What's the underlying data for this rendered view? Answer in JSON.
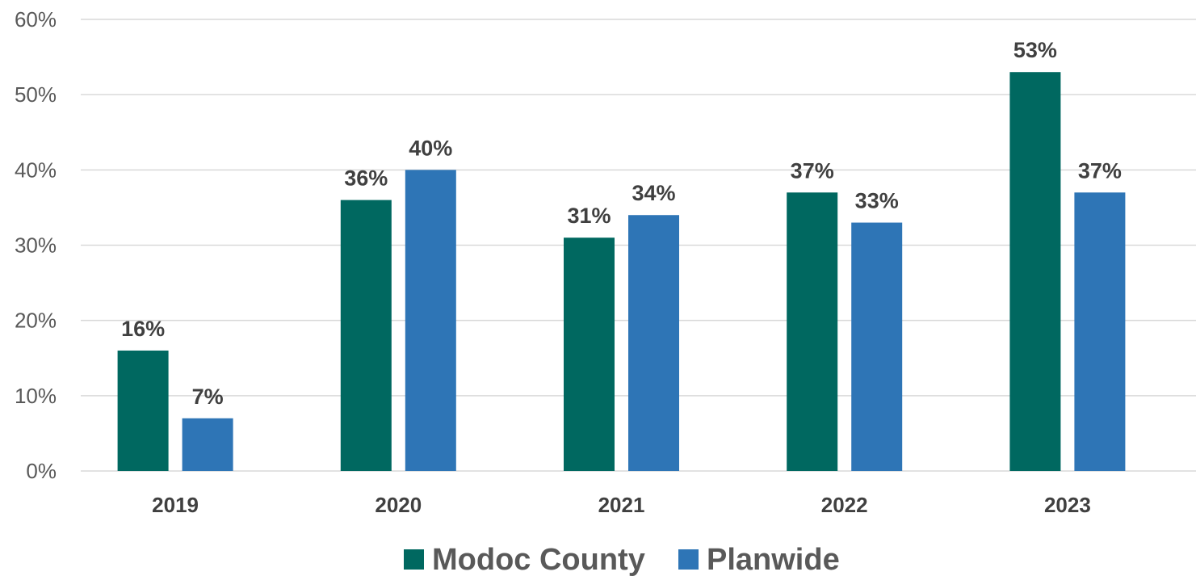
{
  "chart_data": {
    "type": "bar",
    "categories": [
      "2019",
      "2020",
      "2021",
      "2022",
      "2023"
    ],
    "series": [
      {
        "name": "Modoc County",
        "values": [
          16,
          36,
          31,
          37,
          53
        ],
        "color": "#006860"
      },
      {
        "name": "Planwide",
        "values": [
          7,
          40,
          34,
          33,
          37
        ],
        "color": "#2E75B6"
      }
    ],
    "value_suffix": "%",
    "ylim": [
      0,
      60
    ],
    "yticks": [
      0,
      10,
      20,
      30,
      40,
      50,
      60
    ],
    "grid": true,
    "legend_position": "bottom"
  }
}
